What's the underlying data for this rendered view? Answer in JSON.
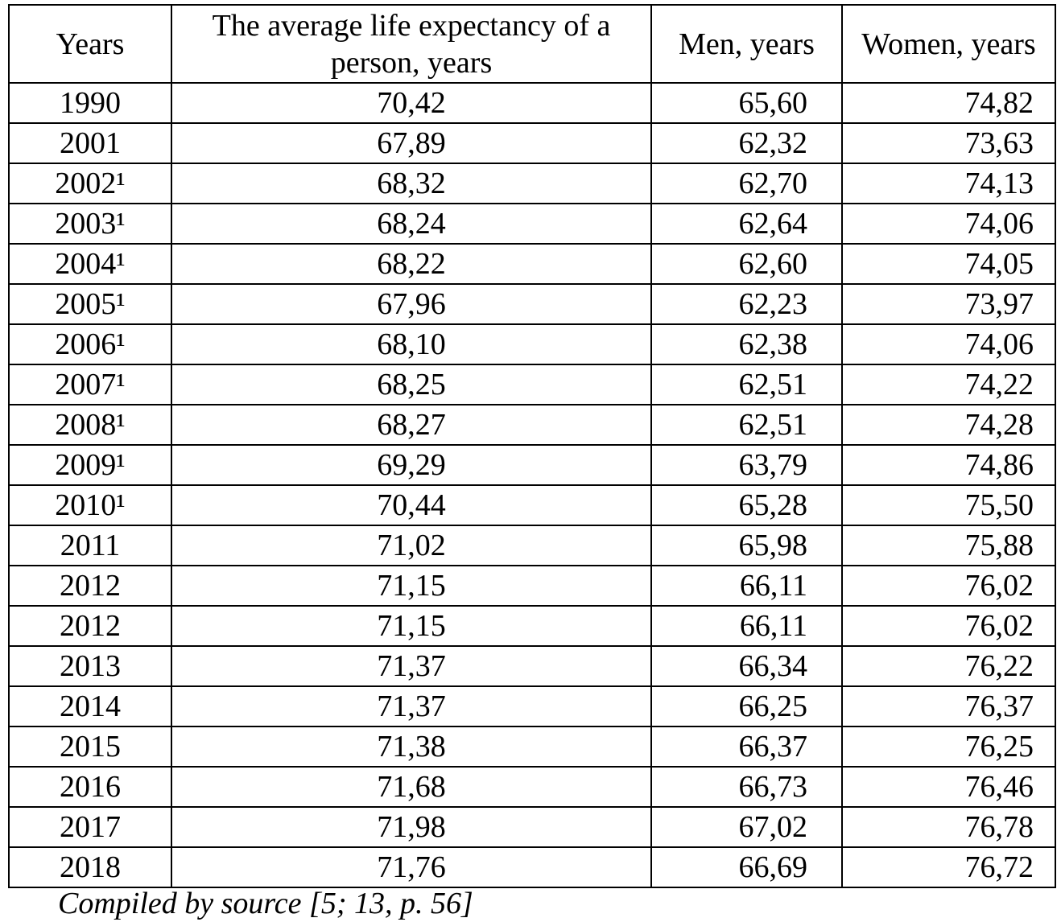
{
  "table": {
    "header": [
      "Years",
      "The average life expectancy of a person, years",
      "Men, years",
      "Women, years"
    ],
    "rows": [
      [
        "1990",
        "70,42",
        "65,60",
        "74,82"
      ],
      [
        "2001",
        "67,89",
        "62,32",
        "73,63"
      ],
      [
        "2002¹",
        "68,32",
        "62,70",
        "74,13"
      ],
      [
        "2003¹",
        "68,24",
        "62,64",
        "74,06"
      ],
      [
        "2004¹",
        "68,22",
        "62,60",
        "74,05"
      ],
      [
        "2005¹",
        "67,96",
        "62,23",
        "73,97"
      ],
      [
        "2006¹",
        "68,10",
        "62,38",
        "74,06"
      ],
      [
        "2007¹",
        "68,25",
        "62,51",
        "74,22"
      ],
      [
        "2008¹",
        "68,27",
        "62,51",
        "74,28"
      ],
      [
        "2009¹",
        "69,29",
        "63,79",
        "74,86"
      ],
      [
        "2010¹",
        "70,44",
        "65,28",
        "75,50"
      ],
      [
        "2011",
        "71,02",
        "65,98",
        "75,88"
      ],
      [
        "2012",
        "71,15",
        "66,11",
        "76,02"
      ],
      [
        "2012",
        "71,15",
        "66,11",
        "76,02"
      ],
      [
        "2013",
        "71,37",
        "66,34",
        "76,22"
      ],
      [
        "2014",
        "71,37",
        "66,25",
        "76,37"
      ],
      [
        "2015",
        "71,38",
        "66,37",
        "76,25"
      ],
      [
        "2016",
        "71,68",
        "66,73",
        "76,46"
      ],
      [
        "2017",
        "71,98",
        "67,02",
        "76,78"
      ],
      [
        "2018",
        "71,76",
        "66,69",
        "76,72"
      ]
    ],
    "note": "Compiled by source [5; 13, p. 56]"
  }
}
